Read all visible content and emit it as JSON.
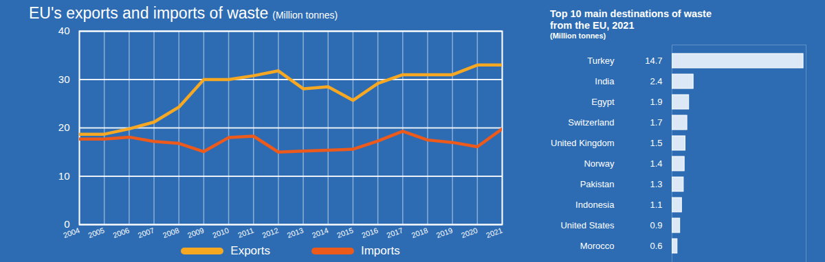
{
  "chart_data": [
    {
      "type": "line",
      "title": "EU's exports and imports of waste",
      "subtitle": "(Million tonnes)",
      "x": [
        2004,
        2005,
        2006,
        2007,
        2008,
        2009,
        2010,
        2011,
        2012,
        2013,
        2014,
        2015,
        2016,
        2017,
        2018,
        2019,
        2020,
        2021
      ],
      "xlim": [
        2004,
        2021
      ],
      "xticks": [
        2004,
        2005,
        2006,
        2007,
        2008,
        2009,
        2010,
        2011,
        2012,
        2013,
        2014,
        2015,
        2016,
        2017,
        2018,
        2019,
        2020,
        2021
      ],
      "ylim": [
        0,
        40
      ],
      "yticks": [
        0,
        10,
        20,
        30,
        40
      ],
      "grid": true,
      "legend": "bottom",
      "series": [
        {
          "name": "Exports",
          "color": "#f7a823",
          "values": [
            18.7,
            18.7,
            19.8,
            21.2,
            24.3,
            30.0,
            30.0,
            30.8,
            31.8,
            28.1,
            28.5,
            25.7,
            29.2,
            31.0,
            31.0,
            31.0,
            33.0,
            33.0
          ]
        },
        {
          "name": "Imports",
          "color": "#ec5a1c",
          "values": [
            17.7,
            17.7,
            18.1,
            17.2,
            16.8,
            15.1,
            18.0,
            18.3,
            15.0,
            15.2,
            15.4,
            15.6,
            17.3,
            19.3,
            17.5,
            17.0,
            16.1,
            19.8
          ]
        }
      ]
    },
    {
      "type": "bar",
      "orientation": "horizontal",
      "title": "Top 10 main destinations of waste from the EU, 2021",
      "subtitle": "(Million tonnes)",
      "categories": [
        "Turkey",
        "India",
        "Egypt",
        "Switzerland",
        "United Kingdom",
        "Norway",
        "Pakistan",
        "Indonesia",
        "United States",
        "Morocco"
      ],
      "values": [
        14.7,
        2.4,
        1.9,
        1.7,
        1.5,
        1.4,
        1.3,
        1.1,
        0.9,
        0.6
      ],
      "color": "#dde8f6",
      "xlim": [
        0,
        15
      ],
      "data_labels": true,
      "tick_labels": "y"
    }
  ]
}
